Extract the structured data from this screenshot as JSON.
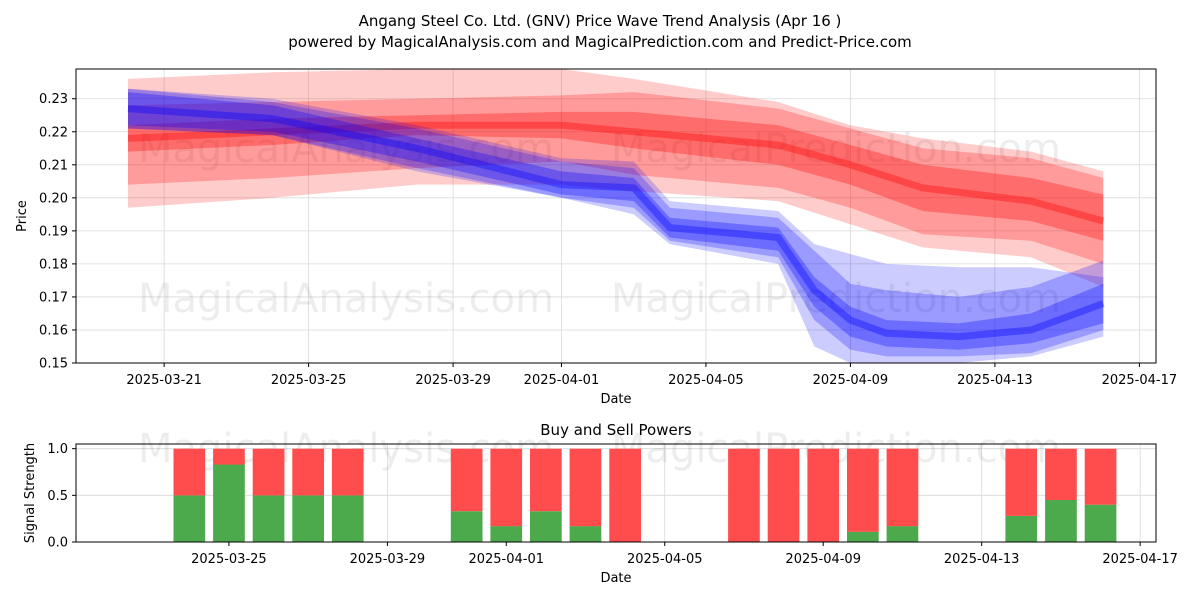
{
  "header": {
    "title_line1": "Angang Steel Co. Ltd. (GNV) Price Wave Trend Analysis (Apr 16 )",
    "title_line2": "powered by MagicalAnalysis.com and MagicalPrediction.com and Predict-Price.com"
  },
  "watermarks": {
    "top_left": "MagicalAnalysis.com",
    "top_right": "MagicalPrediction.com",
    "mid_left": "MagicalAnalysis.com",
    "mid_right": "MagicalPrediction.com",
    "bottom_left": "MagicalAnalysis.com",
    "bottom_right": "MagicalPrediction.com"
  },
  "colors": {
    "red": "#ff0000",
    "blue": "#0000ff",
    "buy": "#4caa4c",
    "sell": "#ff4c4c",
    "grid": "#d9d9d9"
  },
  "chart_data": [
    {
      "type": "area",
      "title": "",
      "xlabel": "Date",
      "ylabel": "Price",
      "ylim": [
        0.15,
        0.239
      ],
      "grid": true,
      "x_tick_labels": [
        "2025-03-21",
        "2025-03-25",
        "2025-03-29",
        "2025-04-01",
        "2025-04-05",
        "2025-04-09",
        "2025-04-13",
        "2025-04-17"
      ],
      "y_ticks": [
        0.15,
        0.16,
        0.17,
        0.18,
        0.19,
        0.2,
        0.21,
        0.22,
        0.23
      ],
      "series": [
        {
          "name": "red-wave",
          "color": "#ff0000",
          "x": [
            "2025-03-20",
            "2025-03-24",
            "2025-03-28",
            "2025-04-01",
            "2025-04-03",
            "2025-04-07",
            "2025-04-09",
            "2025-04-11",
            "2025-04-14",
            "2025-04-16"
          ],
          "center": [
            0.218,
            0.22,
            0.222,
            0.222,
            0.22,
            0.216,
            0.21,
            0.203,
            0.199,
            0.193
          ],
          "bands": [
            {
              "upper": [
                0.222,
                0.224,
                0.225,
                0.226,
                0.226,
                0.222,
                0.216,
                0.21,
                0.206,
                0.201
              ],
              "lower": [
                0.214,
                0.216,
                0.219,
                0.218,
                0.215,
                0.21,
                0.204,
                0.196,
                0.193,
                0.187
              ]
            },
            {
              "upper": [
                0.228,
                0.229,
                0.23,
                0.231,
                0.232,
                0.227,
                0.221,
                0.215,
                0.212,
                0.206
              ],
              "lower": [
                0.204,
                0.206,
                0.209,
                0.211,
                0.207,
                0.203,
                0.197,
                0.189,
                0.187,
                0.18
              ]
            },
            {
              "upper": [
                0.236,
                0.238,
                0.239,
                0.239,
                0.236,
                0.229,
                0.222,
                0.218,
                0.214,
                0.208
              ],
              "lower": [
                0.197,
                0.2,
                0.204,
                0.204,
                0.202,
                0.199,
                0.192,
                0.185,
                0.182,
                0.173
              ]
            }
          ]
        },
        {
          "name": "blue-wave",
          "color": "#0000ff",
          "x": [
            "2025-03-20",
            "2025-03-24",
            "2025-03-28",
            "2025-04-01",
            "2025-04-03",
            "2025-04-04",
            "2025-04-07",
            "2025-04-08",
            "2025-04-09",
            "2025-04-10",
            "2025-04-12",
            "2025-04-14",
            "2025-04-16"
          ],
          "center": [
            0.227,
            0.224,
            0.215,
            0.204,
            0.203,
            0.191,
            0.188,
            0.172,
            0.163,
            0.159,
            0.158,
            0.16,
            0.168
          ],
          "bands": [
            {
              "upper": [
                0.232,
                0.228,
                0.218,
                0.208,
                0.206,
                0.194,
                0.191,
                0.176,
                0.167,
                0.163,
                0.162,
                0.165,
                0.174
              ],
              "lower": [
                0.222,
                0.22,
                0.211,
                0.201,
                0.199,
                0.188,
                0.184,
                0.167,
                0.158,
                0.155,
                0.154,
                0.156,
                0.162
              ]
            },
            {
              "upper": [
                0.233,
                0.229,
                0.221,
                0.211,
                0.209,
                0.197,
                0.194,
                0.184,
                0.174,
                0.172,
                0.17,
                0.173,
                0.181
              ],
              "lower": [
                0.221,
                0.219,
                0.209,
                0.2,
                0.197,
                0.187,
                0.182,
                0.163,
                0.154,
                0.152,
                0.152,
                0.153,
                0.16
              ]
            },
            {
              "upper": [
                0.233,
                0.23,
                0.222,
                0.212,
                0.211,
                0.199,
                0.196,
                0.186,
                0.183,
                0.18,
                0.179,
                0.179,
                0.176
              ],
              "lower": [
                0.221,
                0.219,
                0.208,
                0.2,
                0.195,
                0.186,
                0.18,
                0.155,
                0.15,
                0.15,
                0.15,
                0.152,
                0.158
              ]
            }
          ]
        }
      ]
    },
    {
      "type": "bar",
      "title": "Buy and Sell Powers",
      "xlabel": "Date",
      "ylabel": "Signal Strength",
      "ylim": [
        0,
        1.05
      ],
      "grid": true,
      "x_tick_labels": [
        "2025-03-25",
        "2025-03-29",
        "2025-04-01",
        "2025-04-05",
        "2025-04-09",
        "2025-04-13",
        "2025-04-17"
      ],
      "y_ticks": [
        0.0,
        0.5,
        1.0
      ],
      "y_tick_labels": [
        "0.0",
        "0.5",
        "1.0"
      ],
      "categories": [
        "2025-03-24",
        "2025-03-25",
        "2025-03-26",
        "2025-03-27",
        "2025-03-28",
        "2025-03-31",
        "2025-04-01",
        "2025-04-02",
        "2025-04-03",
        "2025-04-04",
        "2025-04-07",
        "2025-04-08",
        "2025-04-09",
        "2025-04-10",
        "2025-04-11",
        "2025-04-14",
        "2025-04-15",
        "2025-04-16"
      ],
      "series": [
        {
          "name": "Buy",
          "color": "#4caa4c",
          "values": [
            0.5,
            0.83,
            0.5,
            0.5,
            0.5,
            0.33,
            0.17,
            0.33,
            0.17,
            0.0,
            0.0,
            0.0,
            0.0,
            0.11,
            0.17,
            0.28,
            0.45,
            0.4
          ]
        },
        {
          "name": "Sell",
          "color": "#ff4c4c",
          "values": [
            0.5,
            0.17,
            0.5,
            0.5,
            0.5,
            0.67,
            0.83,
            0.67,
            0.83,
            1.0,
            1.0,
            1.0,
            1.0,
            0.89,
            0.83,
            0.72,
            0.55,
            0.6
          ]
        }
      ]
    }
  ]
}
